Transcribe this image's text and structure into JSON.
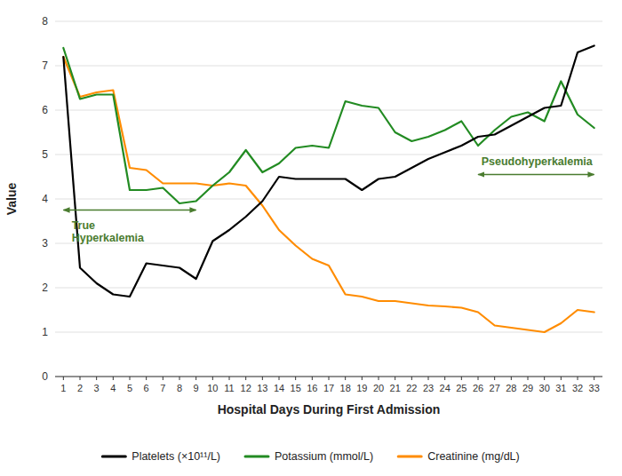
{
  "chart_data": {
    "type": "line",
    "x": [
      1,
      2,
      3,
      4,
      5,
      6,
      7,
      8,
      9,
      10,
      11,
      12,
      13,
      14,
      15,
      16,
      17,
      18,
      19,
      20,
      21,
      22,
      23,
      24,
      25,
      26,
      27,
      28,
      29,
      30,
      31,
      32,
      33
    ],
    "series": [
      {
        "name": "Platelets (×10¹¹/L)",
        "color": "#000000",
        "values": [
          7.2,
          2.45,
          2.1,
          1.85,
          1.8,
          2.55,
          2.5,
          2.45,
          2.2,
          3.05,
          3.3,
          3.6,
          3.95,
          4.5,
          4.45,
          4.45,
          4.45,
          4.45,
          4.2,
          4.45,
          4.5,
          4.7,
          4.9,
          5.05,
          5.2,
          5.4,
          5.45,
          5.65,
          5.85,
          6.05,
          6.1,
          7.3,
          7.45
        ]
      },
      {
        "name": "Potassium (mmol/L)",
        "color": "#228B22",
        "values": [
          7.4,
          6.25,
          6.35,
          6.35,
          4.2,
          4.2,
          4.25,
          3.9,
          3.95,
          4.3,
          4.6,
          5.1,
          4.6,
          4.8,
          5.15,
          5.2,
          5.15,
          6.2,
          6.1,
          6.05,
          5.5,
          5.3,
          5.4,
          5.55,
          5.75,
          5.2,
          5.55,
          5.85,
          5.95,
          5.75,
          6.65,
          5.9,
          5.6
        ]
      },
      {
        "name": "Creatinine (mg/dL)",
        "color": "#FF8C00",
        "values": [
          7.2,
          6.3,
          6.4,
          6.45,
          4.7,
          4.65,
          4.35,
          4.35,
          4.35,
          4.3,
          4.35,
          4.3,
          3.85,
          3.3,
          2.95,
          2.65,
          2.5,
          1.85,
          1.8,
          1.7,
          1.7,
          1.65,
          1.6,
          1.58,
          1.55,
          1.45,
          1.15,
          1.1,
          1.05,
          1.0,
          1.2,
          1.5,
          1.45
        ]
      }
    ],
    "xlabel": "Hospital Days During First Admission",
    "ylabel": "Value",
    "xlim": [
      0.5,
      33.5
    ],
    "ylim": [
      0,
      8
    ],
    "xticks": [
      1,
      2,
      3,
      4,
      5,
      6,
      7,
      8,
      9,
      10,
      11,
      12,
      13,
      14,
      15,
      16,
      17,
      18,
      19,
      20,
      21,
      22,
      23,
      24,
      25,
      26,
      27,
      28,
      29,
      30,
      31,
      32,
      33
    ],
    "yticks": [
      0,
      1,
      2,
      3,
      4,
      5,
      6,
      7,
      8
    ],
    "grid": true,
    "legend": "bottom",
    "annotations": [
      {
        "text": "True\nHyperkalemia",
        "color": "#4a7c2f",
        "x": 1.5,
        "y": 3.55,
        "arrow": {
          "x1": 1,
          "x2": 9,
          "y": 3.75
        }
      },
      {
        "text": "Pseudohyperkalemia",
        "color": "#4a7c2f",
        "x": 26.2,
        "y": 4.72,
        "arrow": {
          "x1": 26,
          "x2": 33,
          "y": 4.55
        }
      }
    ]
  }
}
